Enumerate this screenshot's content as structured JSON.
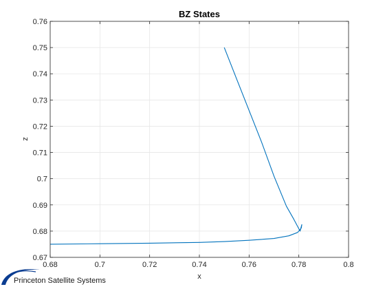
{
  "figure": {
    "logo_text": "Princeton Satellite Systems",
    "colors": {
      "line": "#0072BD",
      "grid": "#e6e6e6",
      "axis": "#262626",
      "logo_blue": "#0b3d91"
    }
  },
  "chart_data": {
    "type": "line",
    "title": "BZ States",
    "xlabel": "x",
    "ylabel": "z",
    "xlim": [
      0.68,
      0.8
    ],
    "ylim": [
      0.67,
      0.76
    ],
    "xticks": [
      0.68,
      0.7,
      0.72,
      0.74,
      0.76,
      0.78,
      0.8
    ],
    "yticks": [
      0.67,
      0.68,
      0.69,
      0.7,
      0.71,
      0.72,
      0.73,
      0.74,
      0.75,
      0.76
    ],
    "xtick_labels": [
      "0.68",
      "0.7",
      "0.72",
      "0.74",
      "0.76",
      "0.78",
      "0.8"
    ],
    "ytick_labels": [
      "0.67",
      "0.68",
      "0.69",
      "0.7",
      "0.71",
      "0.72",
      "0.73",
      "0.74",
      "0.75",
      "0.76"
    ],
    "grid": true,
    "box": true,
    "series": [
      {
        "x": [
          0.75,
          0.755,
          0.76,
          0.765,
          0.77,
          0.775,
          0.778,
          0.7805,
          0.7812,
          0.781,
          0.7795,
          0.776,
          0.77,
          0.76,
          0.75,
          0.74,
          0.72,
          0.7,
          0.68
        ],
        "y": [
          0.75,
          0.738,
          0.726,
          0.714,
          0.701,
          0.6895,
          0.6845,
          0.68,
          0.6825,
          0.6812,
          0.6795,
          0.6782,
          0.6772,
          0.6765,
          0.676,
          0.6757,
          0.6754,
          0.6752,
          0.675
        ]
      }
    ]
  }
}
